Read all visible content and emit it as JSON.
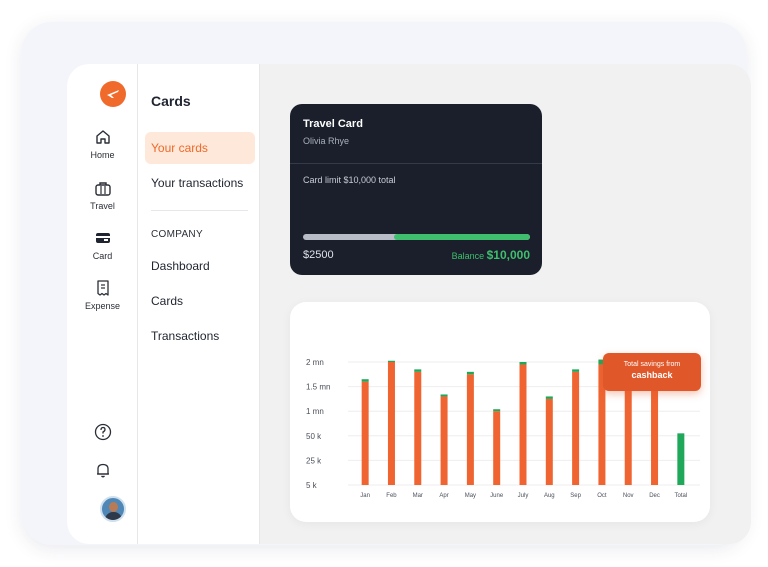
{
  "rail": {
    "items": [
      {
        "label": "Home",
        "icon": "home-icon"
      },
      {
        "label": "Travel",
        "icon": "briefcase-icon"
      },
      {
        "label": "Card",
        "icon": "card-icon"
      },
      {
        "label": "Expense",
        "icon": "receipt-icon"
      }
    ],
    "bottom_icons": [
      "help-icon",
      "bell-icon"
    ]
  },
  "subnav": {
    "title": "Cards",
    "items": [
      {
        "label": "Your cards",
        "active": true
      },
      {
        "label": "Your transactions",
        "active": false
      }
    ],
    "section_label": "COMPANY",
    "company_items": [
      {
        "label": "Dashboard"
      },
      {
        "label": "Cards"
      },
      {
        "label": "Transactions"
      }
    ]
  },
  "travel_card": {
    "title": "Travel Card",
    "holder": "Olivia Rhye",
    "limit_text": "Card limit $10,000 total",
    "spent": "$2500",
    "balance_label": "Balance",
    "balance_value": "$10,000",
    "balance_fraction": 0.6
  },
  "colors": {
    "accent": "#f06a2b",
    "bar_orange": "#ef6431",
    "bar_green": "#1fa75a",
    "card_bg": "#1a1f2b"
  },
  "chart_data": {
    "type": "bar",
    "categories": [
      "Jan",
      "Feb",
      "Mar",
      "Apr",
      "May",
      "June",
      "July",
      "Aug",
      "Sep",
      "Oct",
      "Nov",
      "Dec",
      "Total"
    ],
    "ytick_labels": [
      "5 k",
      "25 k",
      "50 k",
      "1 mn",
      "1.5 mn",
      "2 mn"
    ],
    "series": [
      {
        "values": [
          4.2,
          5.0,
          4.6,
          3.6,
          4.5,
          3.0,
          4.9,
          3.5,
          4.6,
          4.9,
          4.4,
          3.9,
          0
        ]
      },
      {
        "values": [
          0.1,
          0.05,
          0.1,
          0.08,
          0.1,
          0.08,
          0.1,
          0.1,
          0.1,
          0.2,
          0.1,
          0.1,
          2.1
        ]
      }
    ],
    "ylim": [
      0,
      5.0
    ],
    "grid": true,
    "annotation": {
      "line1": "Total savings from",
      "line2": "cashback"
    }
  }
}
